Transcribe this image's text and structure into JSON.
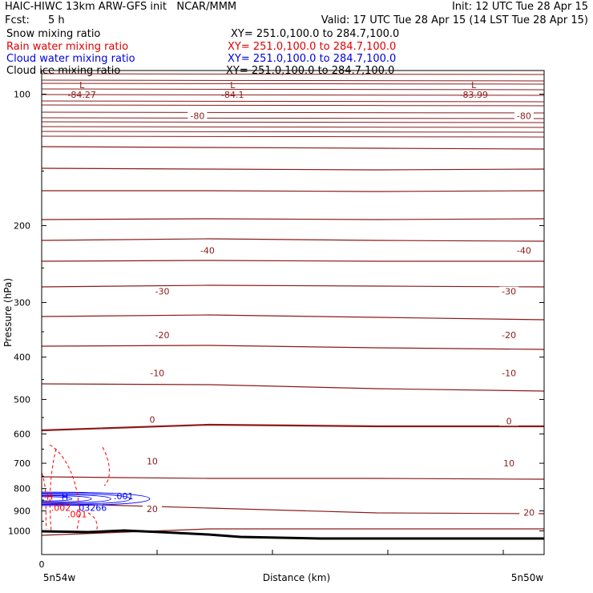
{
  "header": {
    "line1_left": "HAIC-HIWC 13km ARW-GFS init   NCAR/MMM",
    "line1_right": "Init: 12 UTC Tue 28 Apr 15",
    "fcst_label": "Fcst:",
    "fcst_value": "5 h",
    "valid": "Valid: 17 UTC Tue 28 Apr 15 (14 LST Tue 28 Apr 15)"
  },
  "fields": [
    {
      "name": "Snow mixing ratio",
      "xy": "XY= 251.0,100.0 to 284.7,100.0",
      "color": "#000000"
    },
    {
      "name": "Rain water mixing ratio",
      "xy": "XY= 251.0,100.0 to 284.7,100.0",
      "color": "#ff0000"
    },
    {
      "name": "Cloud water mixing ratio",
      "xy": "XY= 251.0,100.0 to 284.7,100.0",
      "color": "#0000ff"
    },
    {
      "name": "Cloud ice mixing ratio",
      "xy": "XY= 251.0,100.0 to 284.7,100.0",
      "color": "#000000"
    }
  ],
  "chart_data": {
    "type": "line",
    "ylabel": "Pressure (hPa)",
    "xlabel": "Distance (km)",
    "yticks": [
      "100",
      "200",
      "300",
      "400",
      "500",
      "600",
      "700",
      "800",
      "900",
      "1000"
    ],
    "x_start_label": "0",
    "x_left_location": "5n54w",
    "x_right_location": "5n50w",
    "y_scale": "log pressure (inverted)",
    "temperature_contours": {
      "color": "#8b1a1a",
      "labels": [
        {
          "text": "-80",
          "pressure": 112,
          "x_frac": 0.31
        },
        {
          "text": "-80",
          "pressure": 112,
          "x_frac": 0.96
        },
        {
          "text": "-40",
          "pressure": 228,
          "x_frac": 0.33
        },
        {
          "text": "-40",
          "pressure": 228,
          "x_frac": 0.96
        },
        {
          "text": "-30",
          "pressure": 283,
          "x_frac": 0.24
        },
        {
          "text": "-30",
          "pressure": 283,
          "x_frac": 0.93
        },
        {
          "text": "-20",
          "pressure": 356,
          "x_frac": 0.24
        },
        {
          "text": "-20",
          "pressure": 356,
          "x_frac": 0.93
        },
        {
          "text": "-10",
          "pressure": 435,
          "x_frac": 0.23
        },
        {
          "text": "-10",
          "pressure": 435,
          "x_frac": 0.93
        },
        {
          "text": "0",
          "pressure": 556,
          "x_frac": 0.22
        },
        {
          "text": "0",
          "pressure": 560,
          "x_frac": 0.93
        },
        {
          "text": "10",
          "pressure": 692,
          "x_frac": 0.22
        },
        {
          "text": "10",
          "pressure": 700,
          "x_frac": 0.93
        },
        {
          "text": "20",
          "pressure": 890,
          "x_frac": 0.22
        },
        {
          "text": "20",
          "pressure": 908,
          "x_frac": 0.97
        }
      ]
    },
    "lows": [
      {
        "label": "L",
        "value": "-84.27",
        "x_frac": 0.08
      },
      {
        "label": "L",
        "value": "-84.1",
        "x_frac": 0.38
      },
      {
        "label": "L",
        "value": "-83.99",
        "x_frac": 0.86
      }
    ],
    "cloud_water": {
      "color": "#0000ff",
      "contour_label": ".001",
      "max_label": "H",
      "max_value": ".03266",
      "pressure_top": 815,
      "pressure_bottom": 875,
      "x_extent_frac": 0.215
    },
    "rain_water": {
      "color": "#ff0000",
      "contour_label": ".001",
      "max_value": ".002"
    }
  }
}
